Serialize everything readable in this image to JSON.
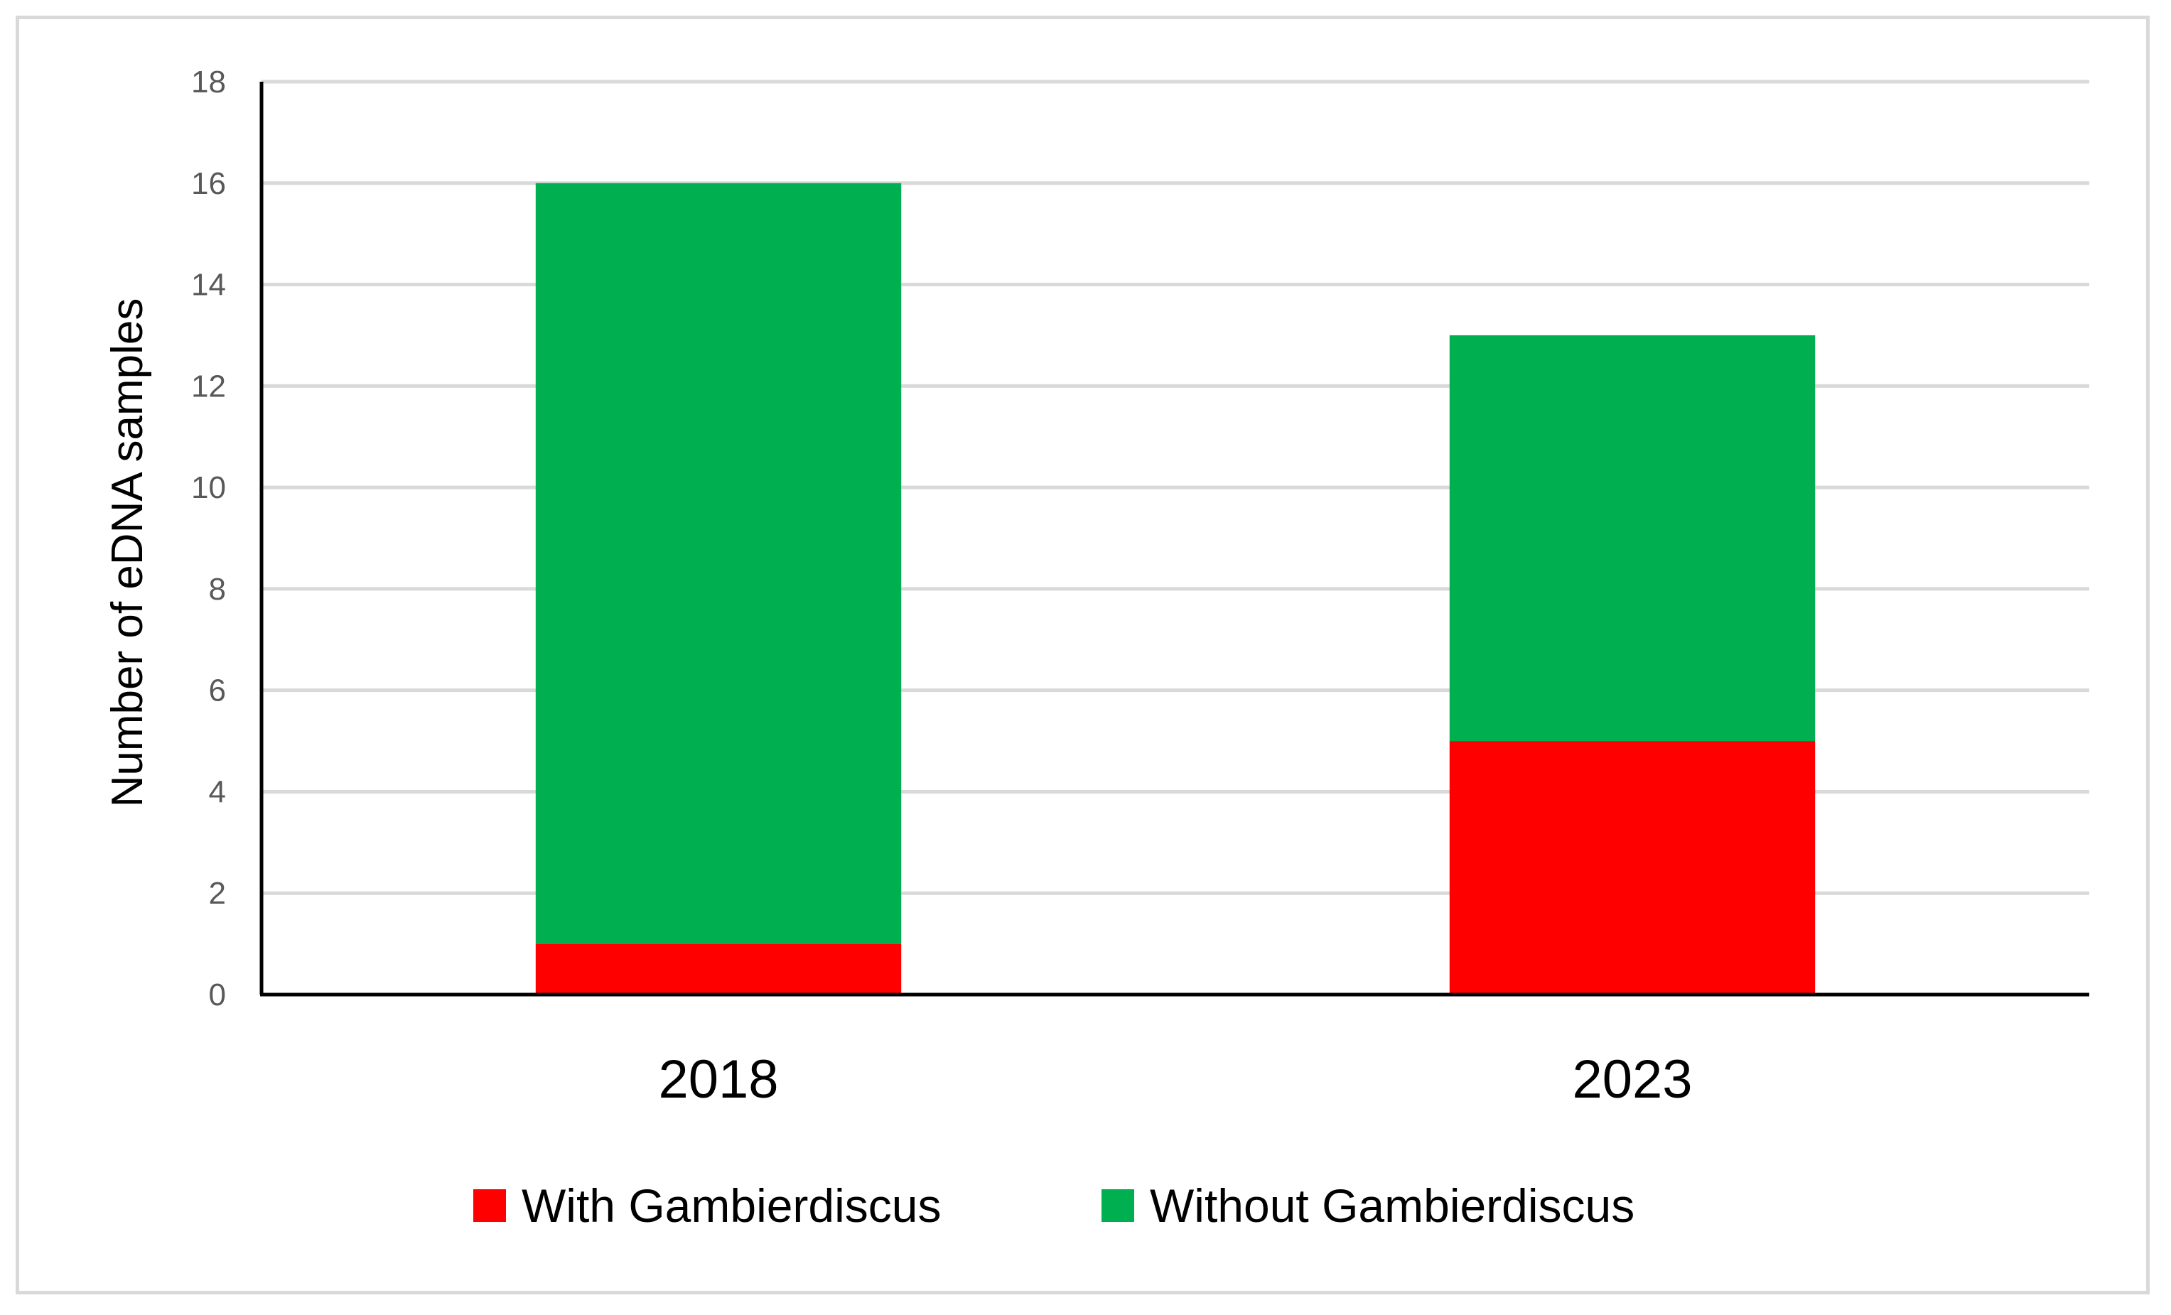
{
  "chart_data": {
    "type": "bar",
    "stacked": true,
    "title": "",
    "xlabel": "",
    "ylabel": "Number of eDNA samples",
    "categories": [
      "2018",
      "2023"
    ],
    "series": [
      {
        "name": "With Gambierdiscus",
        "values": [
          1,
          5
        ],
        "color": "#ff0000"
      },
      {
        "name": "Without Gambierdiscus",
        "values": [
          15,
          8
        ],
        "color": "#00b050"
      }
    ],
    "ylim": [
      0,
      18
    ],
    "yticks": [
      0,
      2,
      4,
      6,
      8,
      10,
      12,
      14,
      16,
      18
    ],
    "grid": true,
    "legend_position": "bottom"
  }
}
